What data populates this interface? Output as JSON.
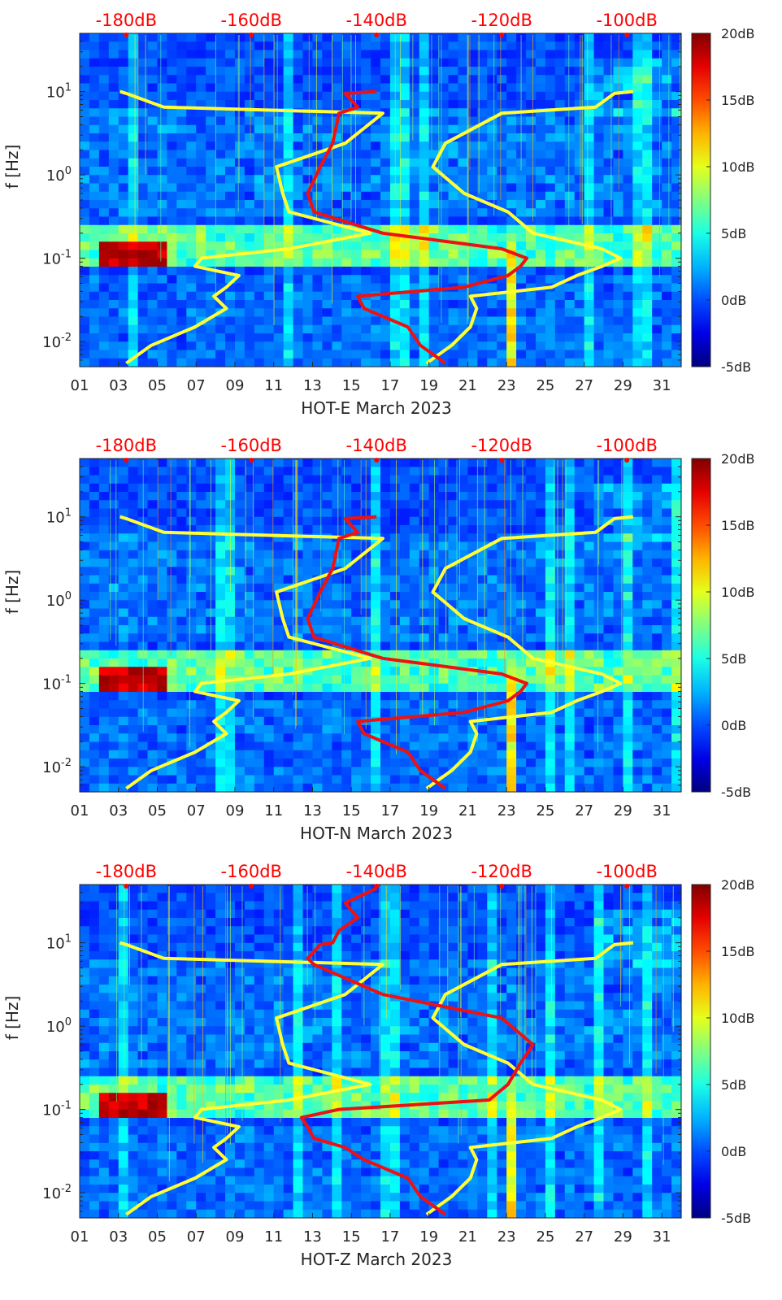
{
  "chart_data": [
    {
      "type": "heatmap",
      "title": "",
      "xlabel": "HOT-E March 2023",
      "ylabel": "f [Hz]",
      "x_ticks": [
        "01",
        "03",
        "05",
        "07",
        "09",
        "11",
        "13",
        "15",
        "17",
        "19",
        "21",
        "23",
        "25",
        "27",
        "29",
        "31"
      ],
      "y_ticks": [
        "10-2",
        "10-1",
        "100",
        "101"
      ],
      "y_scale": "log",
      "ylim": [
        0.005,
        50
      ],
      "top_axis_labels": [
        "-180dB",
        "-160dB",
        "-140dB",
        "-120dB",
        "-100dB"
      ],
      "colorbar": {
        "ticks": [
          "20dB",
          "15dB",
          "10dB",
          "5dB",
          "0dB",
          "-5dB"
        ],
        "range": [
          -5,
          20
        ],
        "colormap": "jet"
      },
      "series": [
        {
          "color": "#ffff33",
          "x_db": [
            -180,
            -176,
            -169,
            -164,
            -166,
            -164,
            -162,
            -169,
            -168,
            -154,
            -141,
            -154,
            -155,
            -156,
            -145,
            -139,
            -174,
            -180,
            -181
          ],
          "y_hz": [
            0.0055,
            0.009,
            0.015,
            0.025,
            0.035,
            0.045,
            0.062,
            0.08,
            0.1,
            0.13,
            0.2,
            0.36,
            0.6,
            1.25,
            2.4,
            5.5,
            6.5,
            9.5,
            10
          ]
        },
        {
          "color": "#ffff33",
          "x_db": [
            -132,
            -128,
            -125,
            -124,
            -125,
            -112,
            -108,
            -104,
            -101,
            -104,
            -115,
            -119,
            -126,
            -131,
            -129,
            -120,
            -105,
            -102,
            -99
          ],
          "y_hz": [
            0.0055,
            0.009,
            0.015,
            0.025,
            0.035,
            0.045,
            0.062,
            0.08,
            0.1,
            0.13,
            0.2,
            0.36,
            0.6,
            1.25,
            2.4,
            5.5,
            6.5,
            9.5,
            10
          ]
        },
        {
          "color": "#ee1111",
          "x_db": [
            -129,
            -133,
            -135,
            -142,
            -143,
            -126,
            -119,
            -117,
            -116,
            -120,
            -139,
            -150,
            -151,
            -149,
            -147,
            -146,
            -143,
            -145,
            -140
          ],
          "y_hz": [
            0.0055,
            0.009,
            0.015,
            0.025,
            0.035,
            0.045,
            0.062,
            0.08,
            0.1,
            0.13,
            0.2,
            0.36,
            0.6,
            1.25,
            2.4,
            5.5,
            6.5,
            9.5,
            10
          ]
        }
      ]
    },
    {
      "type": "heatmap",
      "title": "",
      "xlabel": "HOT-N March 2023",
      "ylabel": "f [Hz]",
      "x_ticks": [
        "01",
        "03",
        "05",
        "07",
        "09",
        "11",
        "13",
        "15",
        "17",
        "19",
        "21",
        "23",
        "25",
        "27",
        "29",
        "31"
      ],
      "y_ticks": [
        "10-2",
        "10-1",
        "100",
        "101"
      ],
      "y_scale": "log",
      "ylim": [
        0.005,
        50
      ],
      "top_axis_labels": [
        "-180dB",
        "-160dB",
        "-140dB",
        "-120dB",
        "-100dB"
      ],
      "colorbar": {
        "ticks": [
          "20dB",
          "15dB",
          "10dB",
          "5dB",
          "0dB",
          "-5dB"
        ],
        "range": [
          -5,
          20
        ],
        "colormap": "jet"
      },
      "series": [
        {
          "color": "#ffff33",
          "x_db": [
            -180,
            -176,
            -169,
            -164,
            -166,
            -164,
            -162,
            -169,
            -168,
            -154,
            -141,
            -154,
            -155,
            -156,
            -145,
            -139,
            -174,
            -180,
            -181
          ],
          "y_hz": [
            0.0055,
            0.009,
            0.015,
            0.025,
            0.035,
            0.045,
            0.062,
            0.08,
            0.1,
            0.13,
            0.2,
            0.36,
            0.6,
            1.25,
            2.4,
            5.5,
            6.5,
            9.5,
            10
          ]
        },
        {
          "color": "#ffff33",
          "x_db": [
            -132,
            -128,
            -125,
            -124,
            -125,
            -112,
            -108,
            -104,
            -101,
            -104,
            -115,
            -119,
            -126,
            -131,
            -129,
            -120,
            -105,
            -102,
            -99
          ],
          "y_hz": [
            0.0055,
            0.009,
            0.015,
            0.025,
            0.035,
            0.045,
            0.062,
            0.08,
            0.1,
            0.13,
            0.2,
            0.36,
            0.6,
            1.25,
            2.4,
            5.5,
            6.5,
            9.5,
            10
          ]
        },
        {
          "color": "#ee1111",
          "x_db": [
            -129,
            -133,
            -135,
            -142,
            -143,
            -126,
            -119,
            -117,
            -116,
            -120,
            -139,
            -150,
            -151,
            -149,
            -147,
            -146,
            -143,
            -145,
            -140
          ],
          "y_hz": [
            0.0055,
            0.009,
            0.015,
            0.025,
            0.035,
            0.045,
            0.062,
            0.08,
            0.1,
            0.13,
            0.2,
            0.36,
            0.6,
            1.25,
            2.4,
            5.5,
            6.5,
            9.5,
            10
          ]
        }
      ]
    },
    {
      "type": "heatmap",
      "title": "",
      "xlabel": "HOT-Z March 2023",
      "ylabel": "f [Hz]",
      "x_ticks": [
        "01",
        "03",
        "05",
        "07",
        "09",
        "11",
        "13",
        "15",
        "17",
        "19",
        "21",
        "23",
        "25",
        "27",
        "29",
        "31"
      ],
      "y_ticks": [
        "10-2",
        "10-1",
        "100",
        "101"
      ],
      "y_scale": "log",
      "ylim": [
        0.005,
        50
      ],
      "top_axis_labels": [
        "-180dB",
        "-160dB",
        "-140dB",
        "-120dB",
        "-100dB"
      ],
      "colorbar": {
        "ticks": [
          "20dB",
          "15dB",
          "10dB",
          "5dB",
          "0dB",
          "-5dB"
        ],
        "range": [
          -5,
          20
        ],
        "colormap": "jet"
      },
      "series": [
        {
          "color": "#ffff33",
          "x_db": [
            -180,
            -176,
            -169,
            -164,
            -166,
            -164,
            -162,
            -169,
            -168,
            -154,
            -141,
            -154,
            -155,
            -156,
            -145,
            -139,
            -174,
            -180,
            -181
          ],
          "y_hz": [
            0.0055,
            0.009,
            0.015,
            0.025,
            0.035,
            0.045,
            0.062,
            0.08,
            0.1,
            0.13,
            0.2,
            0.36,
            0.6,
            1.25,
            2.4,
            5.5,
            6.5,
            9.5,
            10
          ]
        },
        {
          "color": "#ffff33",
          "x_db": [
            -132,
            -128,
            -125,
            -124,
            -125,
            -112,
            -108,
            -104,
            -101,
            -104,
            -115,
            -119,
            -126,
            -131,
            -129,
            -120,
            -105,
            -102,
            -99
          ],
          "y_hz": [
            0.0055,
            0.009,
            0.015,
            0.025,
            0.035,
            0.045,
            0.062,
            0.08,
            0.1,
            0.13,
            0.2,
            0.36,
            0.6,
            1.25,
            2.4,
            5.5,
            6.5,
            9.5,
            10
          ]
        },
        {
          "color": "#ee1111",
          "x_db": [
            -129,
            -133,
            -135,
            -142,
            -145,
            -150,
            -151,
            -152,
            -146,
            -122,
            -119,
            -117,
            -115,
            -120,
            -139,
            -150,
            -151,
            -149,
            -147,
            -146,
            -143,
            -145,
            -140
          ],
          "y_hz": [
            0.0055,
            0.009,
            0.015,
            0.025,
            0.035,
            0.045,
            0.062,
            0.08,
            0.1,
            0.13,
            0.2,
            0.36,
            0.6,
            1.25,
            2.4,
            5.5,
            6.5,
            9.5,
            10,
            14,
            20,
            30,
            45
          ]
        }
      ]
    }
  ]
}
